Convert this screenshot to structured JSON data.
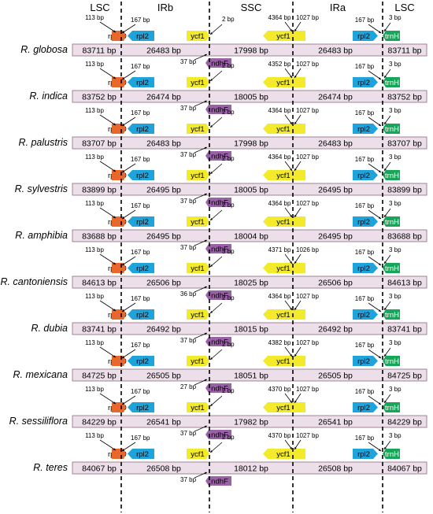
{
  "headers": [
    "LSC",
    "IRb",
    "SSC",
    "IRa",
    "LSC"
  ],
  "genes": {
    "rps19": "rps19",
    "rpl2": "rpl2",
    "ycf1": "ycf1",
    "ndhF": "ndhF",
    "trnH": "trnH"
  },
  "colors": {
    "track": "#ecdfe9",
    "track_border": "#8b6a7e",
    "rps19": "#e8672b",
    "rpl2": "#1ea3da",
    "ycf1": "#f2ea2a",
    "ndhF": "#9a62a6",
    "trnH": "#17a558"
  },
  "species": [
    {
      "name": "R. globosa",
      "lsc1": "83711 bp",
      "irb": "26483 bp",
      "ssc": "17998 bp",
      "ira": "26483 bp",
      "lsc2": "83711 bp",
      "rps19": "113 bp",
      "rpl2_left": "167 bp",
      "ycf1_left": "2 bp",
      "ndhF": "37 bp",
      "ycf1_right_a": "4364 bp",
      "ycf1_right_b": "1027 bp",
      "rpl2_right": "167 bp",
      "trnH": "3 bp"
    },
    {
      "name": "R. indica",
      "lsc1": "83752 bp",
      "irb": "26474 bp",
      "ssc": "18005 bp",
      "ira": "26474 bp",
      "lsc2": "83752 bp",
      "rps19": "113 bp",
      "rpl2_left": "167 bp",
      "ycf1_left": "2 bp",
      "ndhF": "37 bp",
      "ycf1_right_a": "4352 bp",
      "ycf1_right_b": "1027 bp",
      "rpl2_right": "167 bp",
      "trnH": "3 bp"
    },
    {
      "name": "R. palustris",
      "lsc1": "83707 bp",
      "irb": "26483 bp",
      "ssc": "17998 bp",
      "ira": "26483 bp",
      "lsc2": "83707 bp",
      "rps19": "113 bp",
      "rpl2_left": "167 bp",
      "ycf1_left": "2 bp",
      "ndhF": "37 bp",
      "ycf1_right_a": "4364 bp",
      "ycf1_right_b": "1027 bp",
      "rpl2_right": "167 bp",
      "trnH": "3 bp"
    },
    {
      "name": "R. sylvestris",
      "lsc1": "83899 bp",
      "irb": "26495 bp",
      "ssc": "18005 bp",
      "ira": "26495 bp",
      "lsc2": "83899 bp",
      "rps19": "113 bp",
      "rpl2_left": "167 bp",
      "ycf1_left": "2 bp",
      "ndhF": "37 bp",
      "ycf1_right_a": "4364 bp",
      "ycf1_right_b": "1027 bp",
      "rpl2_right": "167 bp",
      "trnH": "3 bp"
    },
    {
      "name": "R. amphibia",
      "lsc1": "83688 bp",
      "irb": "26495 bp",
      "ssc": "18004 bp",
      "ira": "26495 bp",
      "lsc2": "83688 bp",
      "rps19": "113 bp",
      "rpl2_left": "167 bp",
      "ycf1_left": "2 bp",
      "ndhF": "37 bp",
      "ycf1_right_a": "4364 bp",
      "ycf1_right_b": "1027 bp",
      "rpl2_right": "167 bp",
      "trnH": "3 bp"
    },
    {
      "name": "R. cantoniensis",
      "lsc1": "84613 bp",
      "irb": "26506 bp",
      "ssc": "18025 bp",
      "ira": "26506 bp",
      "lsc2": "84613 bp",
      "rps19": "113 bp",
      "rpl2_left": "167 bp",
      "ycf1_left": "3 bp",
      "ndhF": "36 bp",
      "ycf1_right_a": "4371 bp",
      "ycf1_right_b": "1026 bp",
      "rpl2_right": "167 bp",
      "trnH": "3 bp"
    },
    {
      "name": "R. dubia",
      "lsc1": "83741 bp",
      "irb": "26492 bp",
      "ssc": "18015 bp",
      "ira": "26492 bp",
      "lsc2": "83741 bp",
      "rps19": "113 bp",
      "rpl2_left": "167 bp",
      "ycf1_left": "2 bp",
      "ndhF": "37 bp",
      "ycf1_right_a": "4364 bp",
      "ycf1_right_b": "1027 bp",
      "rpl2_right": "167 bp",
      "trnH": "3 bp"
    },
    {
      "name": "R. mexicana",
      "lsc1": "84725 bp",
      "irb": "26505 bp",
      "ssc": "18051 bp",
      "ira": "26505 bp",
      "lsc2": "84725 bp",
      "rps19": "113 bp",
      "rpl2_left": "167 bp",
      "ycf1_left": "2 bp",
      "ndhF": "27 bp",
      "ycf1_right_a": "4382 bp",
      "ycf1_right_b": "1027 bp",
      "rpl2_right": "167 bp",
      "trnH": "3 bp"
    },
    {
      "name": "R. sessiliflora",
      "lsc1": "84229 bp",
      "irb": "26541 bp",
      "ssc": "17982 bp",
      "ira": "26541 bp",
      "lsc2": "84229 bp",
      "rps19": "113 bp",
      "rpl2_left": "167 bp",
      "ycf1_left": "2 bp",
      "ndhF": "37 bp",
      "ycf1_right_a": "4370 bp",
      "ycf1_right_b": "1027 bp",
      "rpl2_right": "167 bp",
      "trnH": "3 bp"
    },
    {
      "name": "R. teres",
      "lsc1": "84067 bp",
      "irb": "26508 bp",
      "ssc": "18012 bp",
      "ira": "26508 bp",
      "lsc2": "84067 bp",
      "rps19": "113 bp",
      "rpl2_left": "167 bp",
      "ycf1_left": "2 bp",
      "ndhF": "37 bp",
      "ycf1_right_a": "4370 bp",
      "ycf1_right_b": "1027 bp",
      "rpl2_right": "167 bp",
      "trnH": "3 bp"
    }
  ]
}
